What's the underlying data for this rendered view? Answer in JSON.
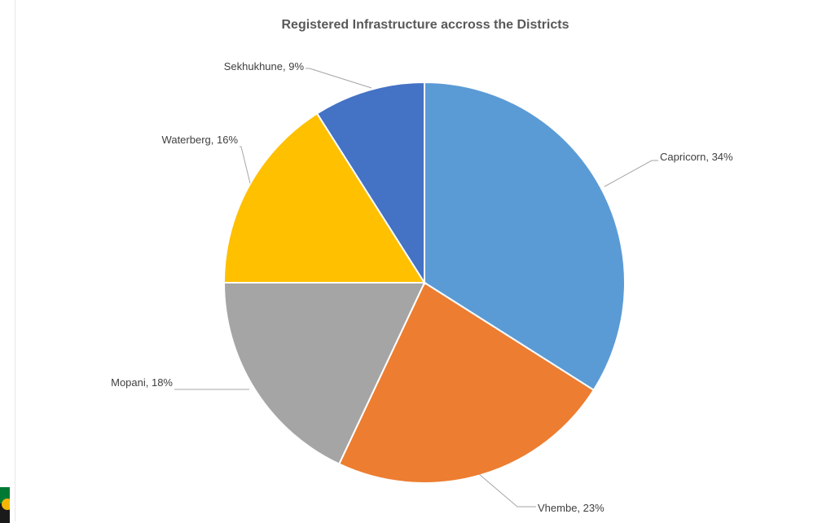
{
  "chart_data": {
    "type": "pie",
    "title": "Registered Infrastructure accross the Districts",
    "slices": [
      {
        "label": "Capricorn",
        "value": 34,
        "display": "Capricorn, 34%",
        "color": "#5b9bd5"
      },
      {
        "label": "Vhembe",
        "value": 23,
        "display": "Vhembe, 23%",
        "color": "#ed7d31"
      },
      {
        "label": "Mopani",
        "value": 18,
        "display": "Mopani, 18%",
        "color": "#a5a5a5"
      },
      {
        "label": "Waterberg",
        "value": 16,
        "display": "Waterberg, 16%",
        "color": "#ffc000"
      },
      {
        "label": "Sekhukhune",
        "value": 9,
        "display": "Sekhukhune, 9%",
        "color": "#4472c4"
      }
    ],
    "start": "12 o'clock",
    "direction": "clockwise",
    "legend": "none (data labels outside slices)"
  }
}
